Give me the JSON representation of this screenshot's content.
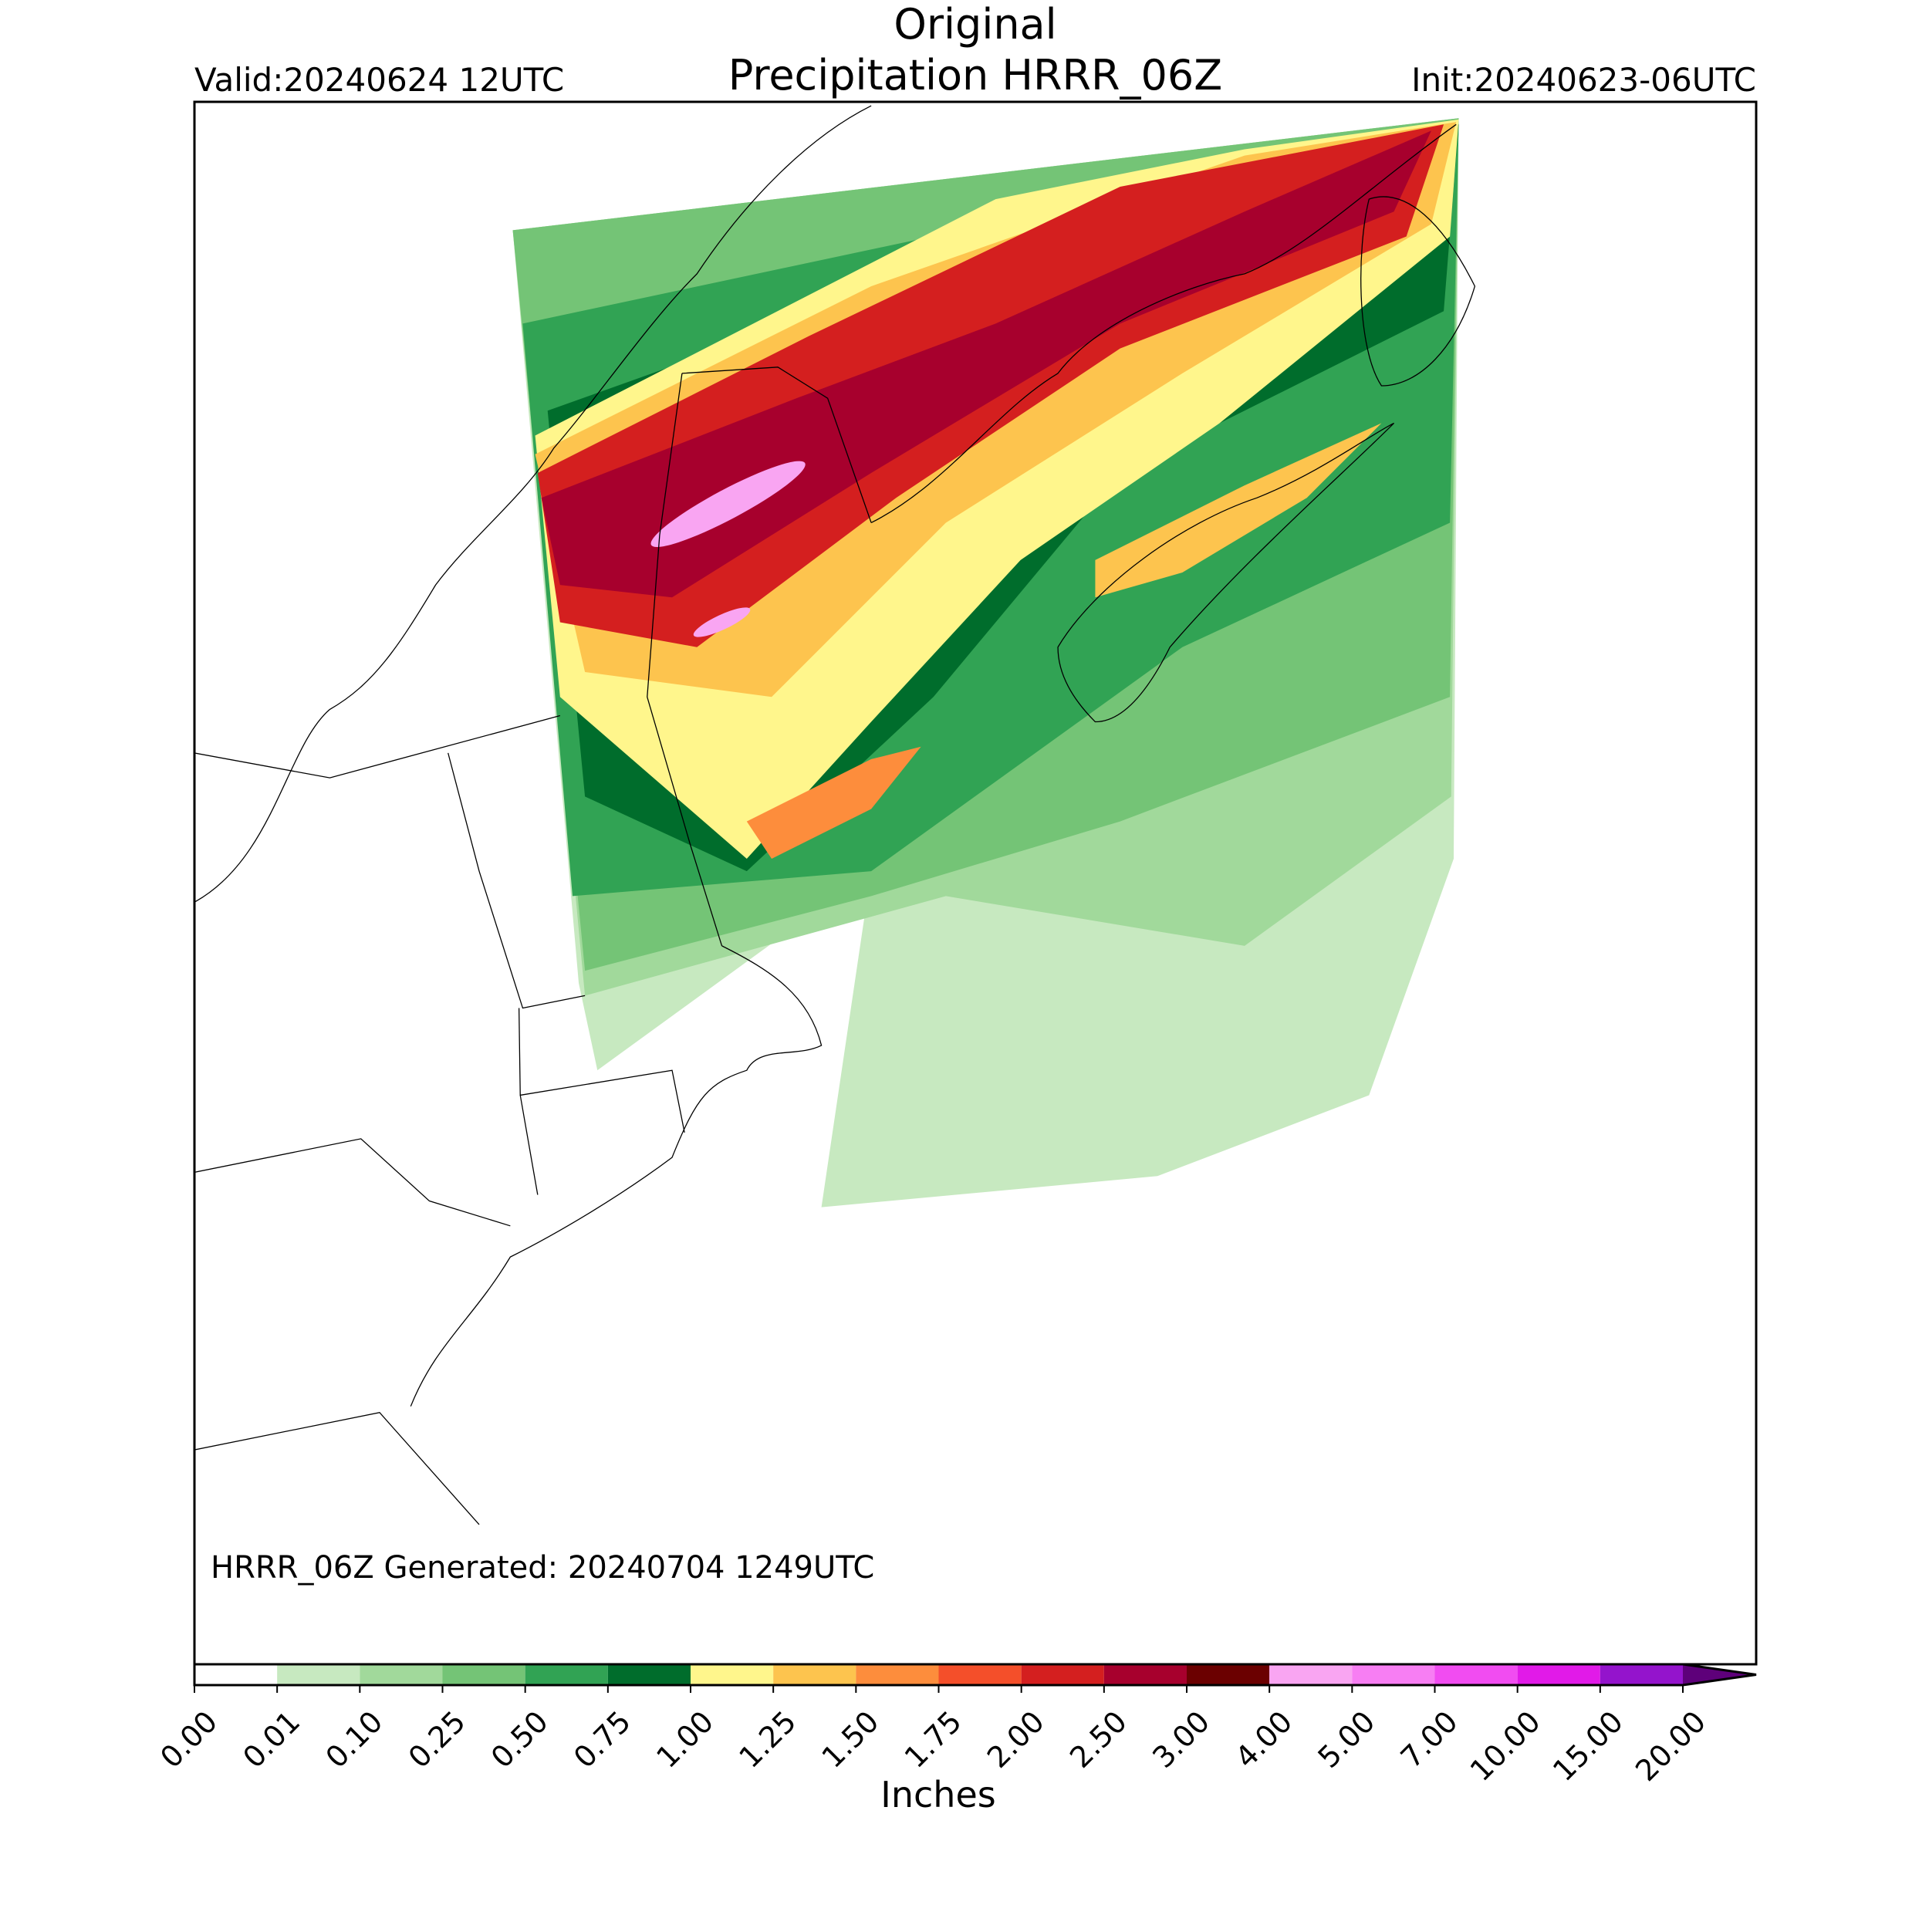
{
  "header": {
    "title": [
      "Original",
      "Precipitation HRRR_06Z"
    ],
    "valid": "Valid:20240624 12UTC",
    "init": "Init:20240623-06UTC"
  },
  "note": "HRRR_06Z Generated: 20240704 1249UTC",
  "colorbar": {
    "label": "Inches",
    "levels": [
      {
        "value": 0,
        "label": "0.00"
      },
      {
        "value": 0.01,
        "label": "0.01"
      },
      {
        "value": 0.1,
        "label": "0.10"
      },
      {
        "value": 0.25,
        "label": "0.25"
      },
      {
        "value": 0.5,
        "label": "0.50"
      },
      {
        "value": 0.75,
        "label": "0.75"
      },
      {
        "value": 1,
        "label": "1.00"
      },
      {
        "value": 1.25,
        "label": "1.25"
      },
      {
        "value": 1.5,
        "label": "1.50"
      },
      {
        "value": 1.75,
        "label": "1.75"
      },
      {
        "value": 2,
        "label": "2.00"
      },
      {
        "value": 2.5,
        "label": "2.50"
      },
      {
        "value": 3,
        "label": "3.00"
      },
      {
        "value": 4,
        "label": "4.00"
      },
      {
        "value": 5,
        "label": "5.00"
      },
      {
        "value": 7,
        "label": "7.00"
      },
      {
        "value": 10,
        "label": "10.00"
      },
      {
        "value": 15,
        "label": "15.00"
      },
      {
        "value": 20,
        "label": "20.00"
      }
    ],
    "colors": [
      "#ffffff",
      "#c7e9c0",
      "#a1d99b",
      "#74c476",
      "#31a354",
      "#006d2c",
      "#fff68c",
      "#fdc44e",
      "#fd8d3c",
      "#f44f2a",
      "#d41f1f",
      "#a7002d",
      "#6b0000",
      "#f9a5f2",
      "#f77ef3",
      "#f14cf1",
      "#e11ae8",
      "#9414cc"
    ],
    "extend_color": "#5e007a"
  }
}
